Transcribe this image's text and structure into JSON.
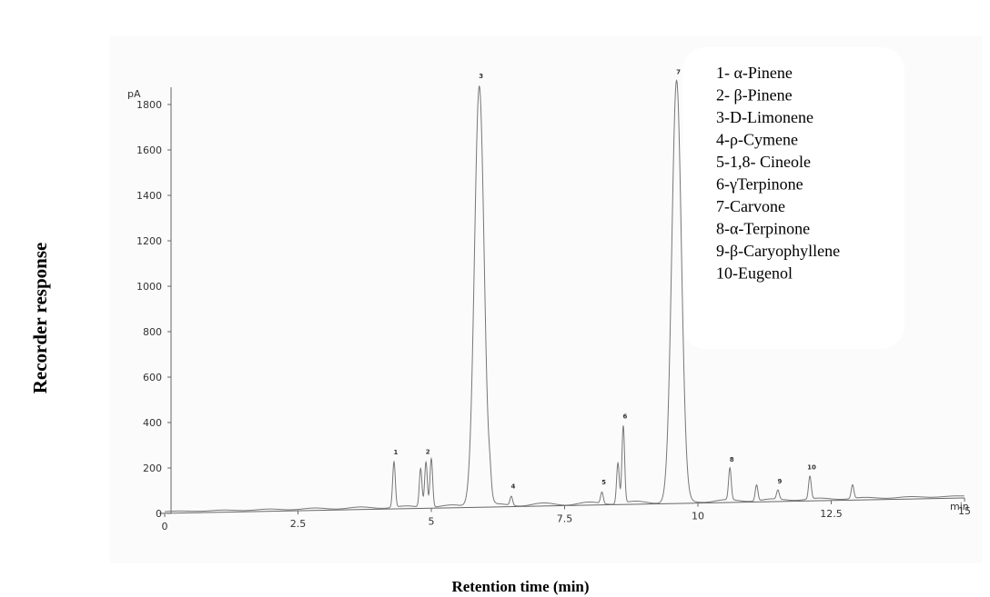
{
  "chart_data": {
    "type": "line",
    "title": "",
    "xlabel": "Retention time (min)",
    "ylabel": "Recorder response",
    "y_unit": "pA",
    "x_unit": "min",
    "xlim": [
      0,
      15
    ],
    "ylim": [
      0,
      1900
    ],
    "x_ticks": [
      "0",
      "2.5",
      "5",
      "7.5",
      "10",
      "12.5",
      "15"
    ],
    "y_ticks": [
      "0",
      "200",
      "400",
      "600",
      "800",
      "1000",
      "1200",
      "1400",
      "1600",
      "1800"
    ],
    "grid": false,
    "legend_position": "top-right",
    "legend": [
      "1- α-Pinene",
      "2- β-Pinene",
      "3-D-Limonene",
      "4-ρ-Cymene",
      "5-1,8- Cineole",
      "6-γTerpinone",
      "7-Carvone",
      "8-α-Terpinone",
      "9-β-Caryophyllene",
      "10-Eugenol"
    ],
    "peaks": [
      {
        "label": "1",
        "rt": 4.3,
        "height": 200
      },
      {
        "label": "2",
        "rt": 4.9,
        "height": 200
      },
      {
        "label": "3",
        "rt": 5.9,
        "height": 1850
      },
      {
        "label": "4",
        "rt": 6.5,
        "height": 40
      },
      {
        "label": "5",
        "rt": 8.2,
        "height": 50
      },
      {
        "label": "6",
        "rt": 8.6,
        "height": 340
      },
      {
        "label": "7",
        "rt": 9.6,
        "height": 1850
      },
      {
        "label": "8",
        "rt": 10.6,
        "height": 140
      },
      {
        "label": "9",
        "rt": 11.5,
        "height": 40
      },
      {
        "label": "10",
        "rt": 12.1,
        "height": 100
      }
    ],
    "minor_peaks": [
      {
        "rt": 4.8,
        "height": 170
      },
      {
        "rt": 5.0,
        "height": 215
      },
      {
        "rt": 6.1,
        "height": 60
      },
      {
        "rt": 8.5,
        "height": 180
      },
      {
        "rt": 11.1,
        "height": 70
      },
      {
        "rt": 12.9,
        "height": 60
      }
    ]
  }
}
